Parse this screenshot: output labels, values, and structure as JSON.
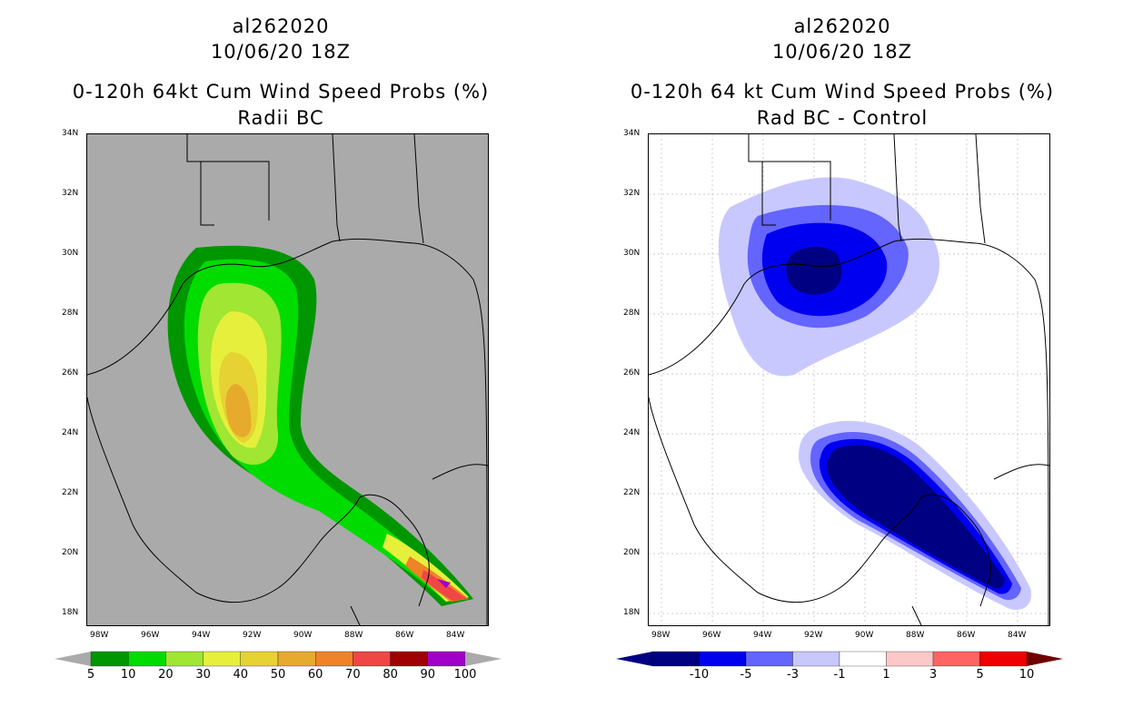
{
  "left_panel": {
    "storm_id": "al262020",
    "date": "10/06/20 18Z",
    "title": "0-120h 64kt Cum Wind Speed Probs (%)",
    "subtitle": "Radii BC",
    "colorbar": {
      "labels": [
        "5",
        "10",
        "20",
        "30",
        "40",
        "50",
        "60",
        "70",
        "80",
        "90",
        "100"
      ],
      "colors": [
        "#009600",
        "#00dc00",
        "#a0e632",
        "#e6f03c",
        "#e6d232",
        "#e6aa2d",
        "#f08228",
        "#f04646",
        "#a00000",
        "#a000c8"
      ]
    }
  },
  "right_panel": {
    "storm_id": "al262020",
    "date": "10/06/20 18Z",
    "title": "0-120h 64 kt Cum Wind Speed Probs (%)",
    "subtitle": "Rad BC - Control",
    "colorbar": {
      "labels": [
        "-10",
        "-5",
        "-3",
        "-1",
        "1",
        "3",
        "5",
        "10"
      ],
      "colors": [
        "#000082",
        "#0000f0",
        "#6464ff",
        "#c8c8ff",
        "#ffffff",
        "#ffc8c8",
        "#ff6464",
        "#f00000"
      ]
    }
  },
  "axes": {
    "lat_labels": [
      "34N",
      "32N",
      "30N",
      "28N",
      "26N",
      "24N",
      "22N",
      "20N",
      "18N"
    ],
    "lon_labels": [
      "98W",
      "96W",
      "94W",
      "92W",
      "90W",
      "88W",
      "86W",
      "84W"
    ]
  }
}
